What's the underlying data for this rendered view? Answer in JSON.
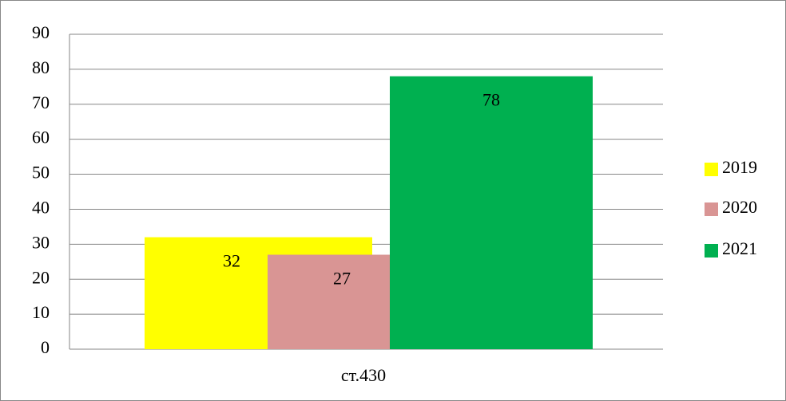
{
  "chart_data": {
    "type": "bar",
    "categories": [
      "ст.430"
    ],
    "series": [
      {
        "name": "2019",
        "color": "#ffff00",
        "values": [
          32
        ]
      },
      {
        "name": "2020",
        "color": "#d99594",
        "values": [
          27
        ]
      },
      {
        "name": "2021",
        "color": "#00b050",
        "values": [
          78
        ]
      }
    ],
    "ylim": [
      0,
      90
    ],
    "yticks": [
      0,
      10,
      20,
      30,
      40,
      50,
      60,
      70,
      80,
      90
    ],
    "grid": true,
    "legend": "right"
  }
}
